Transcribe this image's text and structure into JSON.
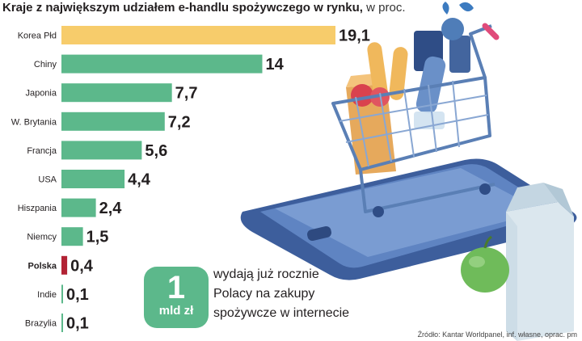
{
  "title": {
    "main": "Kraje z największym udziałem e-handlu spożywczego w rynku,",
    "unit": " w proc."
  },
  "chart_data": {
    "type": "bar",
    "orientation": "horizontal",
    "categories": [
      "Korea Płd",
      "Chiny",
      "Japonia",
      "W. Brytania",
      "Francja",
      "USA",
      "Hiszpania",
      "Niemcy",
      "Polska",
      "Indie",
      "Brazylia"
    ],
    "values": [
      19.1,
      14,
      7.7,
      7.2,
      5.6,
      4.4,
      2.4,
      1.5,
      0.4,
      0.1,
      0.1
    ],
    "value_labels": [
      "19,1",
      "14",
      "7,7",
      "7,2",
      "5,6",
      "4,4",
      "2,4",
      "1,5",
      "0,4",
      "0,1",
      "0,1"
    ],
    "highlight": "Polska",
    "colors": {
      "default": "#5cb88b",
      "max": "#f7cc6b",
      "highlight": "#b22234"
    },
    "xlim": [
      0,
      19.1
    ],
    "grid": false,
    "legend": "none"
  },
  "callout": {
    "number": "1",
    "unit": "mld zł",
    "lines": [
      "wydają już rocznie",
      "Polacy na zakupy",
      "spożywcze w internecie"
    ]
  },
  "source": "Źródło: Kantar Worldpanel, inf. własne, oprac. pm"
}
